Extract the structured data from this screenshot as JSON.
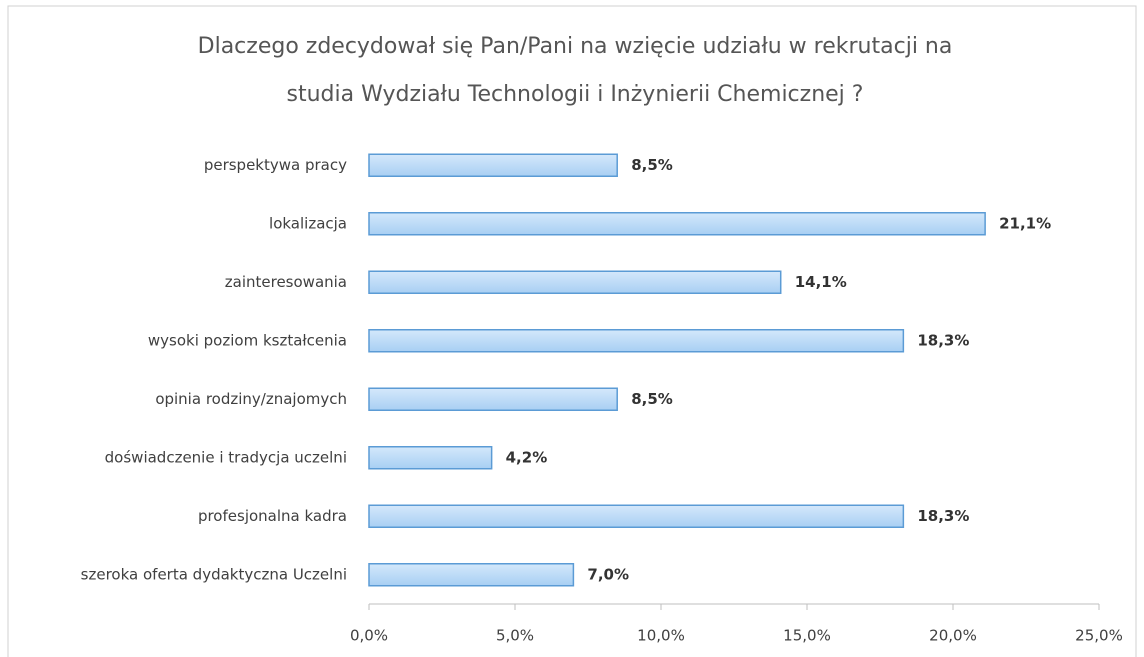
{
  "chart_data": {
    "type": "barh",
    "title": [
      "Dlaczego zdecydował się Pan/Pani na wzięcie udziału w rekrutacji na",
      "studia Wydziału Technologii i Inżynierii Chemicznej ?"
    ],
    "categories": [
      "perspektywa pracy",
      "lokalizacja",
      "zainteresowania",
      "wysoki poziom kształcenia",
      "opinia rodziny/znajomych",
      "doświadczenie i tradycja uczelni",
      "profesjonalna kadra",
      "szeroka oferta dydaktyczna Uczelni"
    ],
    "values": [
      8.5,
      21.1,
      14.1,
      18.3,
      8.5,
      4.2,
      18.3,
      7.0
    ],
    "value_labels": [
      "8,5%",
      "21,1%",
      "14,1%",
      "18,3%",
      "8,5%",
      "4,2%",
      "18,3%",
      "7,0%"
    ],
    "color": "#a8cff3",
    "xlim": [
      0,
      25
    ],
    "xticks": [
      {
        "value": 0,
        "label": "0,0%"
      },
      {
        "value": 5,
        "label": "5,0%"
      },
      {
        "value": 10,
        "label": "10,0%"
      },
      {
        "value": 15,
        "label": "15,0%"
      },
      {
        "value": 20,
        "label": "20,0%"
      },
      {
        "value": 25,
        "label": "25,0%"
      }
    ],
    "grid": false
  }
}
